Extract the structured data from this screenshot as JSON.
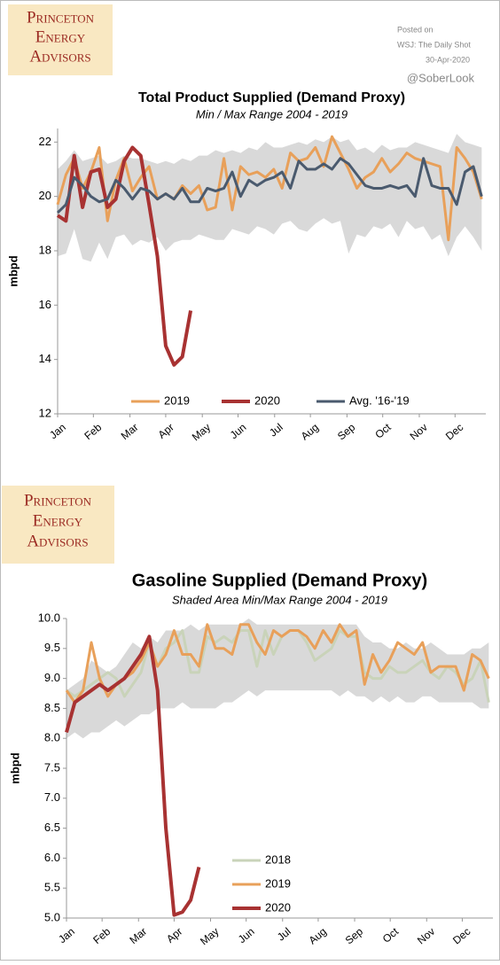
{
  "logos": [
    [
      "Princeton",
      "Energy",
      "Advisors"
    ],
    [
      "Princeton",
      "Energy",
      "Advisors"
    ]
  ],
  "posted": {
    "label": "Posted on",
    "source": "WSJ: The Daily Shot",
    "date": "30-Apr-2020",
    "handle": "@SoberLook"
  },
  "chart_data": [
    {
      "type": "line",
      "title": "Total Product Supplied (Demand Proxy)",
      "subtitle": "Min / Max Range 2004 - 2019",
      "y_label": "mbpd",
      "legend": "bottom",
      "x": [
        0,
        1,
        2,
        3,
        4,
        5,
        6,
        7,
        8,
        9,
        10,
        11,
        12,
        13,
        14,
        15,
        16,
        17,
        18,
        19,
        20,
        21,
        22,
        23,
        24,
        25,
        26,
        27,
        28,
        29,
        30,
        31,
        32,
        33,
        34,
        35,
        36,
        37,
        38,
        39,
        40,
        41,
        42,
        43,
        44,
        45,
        46,
        47,
        48,
        49,
        50,
        51
      ],
      "xlim": [
        0,
        51.5
      ],
      "xticks": [
        {
          "value": 0,
          "label": "Jan"
        },
        {
          "value": 4.3,
          "label": "Feb"
        },
        {
          "value": 8.7,
          "label": "Mar"
        },
        {
          "value": 13,
          "label": "Apr"
        },
        {
          "value": 17.4,
          "label": "May"
        },
        {
          "value": 21.7,
          "label": "Jun"
        },
        {
          "value": 26.1,
          "label": "Jul"
        },
        {
          "value": 30.4,
          "label": "Aug"
        },
        {
          "value": 34.8,
          "label": "Sep"
        },
        {
          "value": 39.1,
          "label": "Oct"
        },
        {
          "value": 43.5,
          "label": "Nov"
        },
        {
          "value": 47.8,
          "label": "Dec"
        }
      ],
      "ylim": [
        12,
        22.5
      ],
      "yticks": [
        12,
        14,
        16,
        18,
        20,
        22
      ],
      "band": {
        "color": "#d9d9d9",
        "max": [
          21.0,
          21.3,
          21.7,
          21.3,
          21.4,
          21.5,
          21.2,
          21.3,
          21.5,
          21.4,
          21.4,
          21.3,
          21.2,
          21.3,
          21.2,
          21.4,
          21.3,
          21.5,
          21.5,
          21.7,
          21.6,
          21.7,
          21.6,
          21.8,
          21.7,
          22.0,
          21.8,
          21.8,
          21.9,
          22.0,
          21.9,
          22.1,
          22.0,
          22.2,
          22.0,
          22.1,
          21.7,
          21.8,
          21.6,
          21.9,
          21.7,
          21.8,
          21.8,
          22.0,
          21.9,
          21.8,
          21.7,
          21.6,
          22.3,
          22.0,
          21.9,
          21.8
        ],
        "min": [
          17.8,
          17.9,
          18.8,
          17.7,
          17.6,
          18.3,
          17.7,
          18.5,
          18.6,
          18.2,
          18.4,
          18.3,
          18.5,
          18.0,
          18.3,
          18.4,
          18.4,
          18.6,
          18.5,
          18.4,
          18.4,
          18.8,
          18.7,
          18.6,
          18.9,
          18.8,
          18.6,
          19.0,
          19.1,
          18.8,
          18.7,
          19.0,
          19.2,
          19.0,
          19.1,
          17.9,
          18.6,
          18.5,
          18.9,
          18.8,
          19.0,
          18.5,
          19.1,
          18.8,
          18.9,
          18.4,
          18.6,
          17.8,
          18.5,
          18.9,
          18.5,
          18.0
        ]
      },
      "series": [
        {
          "name": "2019",
          "color": "#e8a05a",
          "width": 3,
          "values": [
            19.7,
            20.8,
            21.4,
            20.3,
            20.9,
            21.8,
            19.1,
            20.6,
            21.4,
            20.2,
            20.7,
            21.1,
            19.9,
            20.1,
            19.9,
            20.4,
            20.1,
            20.4,
            19.5,
            19.6,
            21.4,
            19.5,
            21.1,
            20.8,
            20.9,
            20.7,
            21.0,
            20.3,
            21.6,
            21.3,
            21.4,
            21.8,
            21.1,
            22.2,
            21.6,
            21.0,
            20.3,
            20.7,
            20.9,
            21.4,
            20.9,
            21.2,
            21.6,
            21.4,
            21.3,
            21.2,
            21.1,
            18.4,
            21.8,
            21.4,
            20.9,
            19.9
          ]
        },
        {
          "name": "2020",
          "color": "#a83232",
          "width": 4,
          "values": [
            19.3,
            19.1,
            21.5,
            19.6,
            20.9,
            21.0,
            19.6,
            19.9,
            21.3,
            21.8,
            21.5,
            19.7,
            17.8,
            14.5,
            13.8,
            14.1,
            15.8,
            null,
            null,
            null,
            null,
            null,
            null,
            null,
            null,
            null,
            null,
            null,
            null,
            null,
            null,
            null,
            null,
            null,
            null,
            null,
            null,
            null,
            null,
            null,
            null,
            null,
            null,
            null,
            null,
            null,
            null,
            null,
            null,
            null,
            null,
            null
          ]
        },
        {
          "name": "Avg. '16-'19",
          "color": "#4a5a6e",
          "width": 3,
          "values": [
            19.4,
            19.7,
            20.7,
            20.4,
            20.0,
            19.8,
            19.9,
            20.6,
            20.3,
            19.9,
            20.3,
            20.2,
            19.9,
            20.1,
            19.9,
            20.3,
            19.8,
            19.8,
            20.3,
            20.2,
            20.3,
            20.9,
            20.0,
            20.6,
            20.4,
            20.6,
            20.7,
            20.9,
            20.3,
            21.3,
            21.0,
            21.0,
            21.2,
            21.0,
            21.4,
            21.2,
            20.8,
            20.4,
            20.3,
            20.3,
            20.4,
            20.3,
            20.4,
            20.0,
            21.4,
            20.4,
            20.3,
            20.3,
            19.7,
            20.9,
            21.1,
            20.0
          ]
        }
      ]
    },
    {
      "type": "line",
      "title": "Gasoline Supplied (Demand Proxy)",
      "subtitle": "Shaded Area Min/Max Range 2004 - 2019",
      "y_label": "mbpd",
      "legend": "lower right",
      "x": [
        0,
        1,
        2,
        3,
        4,
        5,
        6,
        7,
        8,
        9,
        10,
        11,
        12,
        13,
        14,
        15,
        16,
        17,
        18,
        19,
        20,
        21,
        22,
        23,
        24,
        25,
        26,
        27,
        28,
        29,
        30,
        31,
        32,
        33,
        34,
        35,
        36,
        37,
        38,
        39,
        40,
        41,
        42,
        43,
        44,
        45,
        46,
        47,
        48,
        49,
        50,
        51
      ],
      "xlim": [
        0,
        51.5
      ],
      "xticks": [
        {
          "value": 0,
          "label": "Jan"
        },
        {
          "value": 4.3,
          "label": "Feb"
        },
        {
          "value": 8.7,
          "label": "Mar"
        },
        {
          "value": 13,
          "label": "Apr"
        },
        {
          "value": 17.4,
          "label": "May"
        },
        {
          "value": 21.7,
          "label": "Jun"
        },
        {
          "value": 26.1,
          "label": "Jul"
        },
        {
          "value": 30.4,
          "label": "Aug"
        },
        {
          "value": 34.8,
          "label": "Sep"
        },
        {
          "value": 39.1,
          "label": "Oct"
        },
        {
          "value": 43.5,
          "label": "Nov"
        },
        {
          "value": 47.8,
          "label": "Dec"
        }
      ],
      "ylim": [
        5,
        10
      ],
      "yticks": [
        {
          "value": 5,
          "label": "5.0"
        },
        5.5,
        {
          "value": 6,
          "label": "6.0"
        },
        6.5,
        {
          "value": 7,
          "label": "7.0"
        },
        7.5,
        {
          "value": 8,
          "label": "8.0"
        },
        8.5,
        {
          "value": 9,
          "label": "9.0"
        },
        9.5,
        {
          "value": 10,
          "label": "10.0"
        }
      ],
      "band": {
        "color": "#d9d9d9",
        "max": [
          8.8,
          8.9,
          9.0,
          9.3,
          9.2,
          9.1,
          9.2,
          9.4,
          9.6,
          9.5,
          9.7,
          9.6,
          9.8,
          9.8,
          9.8,
          9.9,
          9.8,
          9.9,
          9.9,
          9.9,
          9.9,
          9.9,
          10.0,
          9.9,
          9.9,
          9.9,
          9.9,
          9.9,
          9.9,
          9.9,
          9.9,
          9.9,
          9.9,
          9.9,
          9.9,
          9.9,
          9.7,
          9.6,
          9.6,
          9.5,
          9.5,
          9.6,
          9.5,
          9.5,
          9.6,
          9.5,
          9.4,
          9.4,
          9.4,
          9.5,
          9.5,
          9.6
        ],
        "min": [
          8.0,
          8.1,
          8.0,
          8.1,
          8.1,
          8.2,
          8.3,
          8.2,
          8.3,
          8.4,
          8.4,
          8.5,
          8.5,
          8.5,
          8.6,
          8.5,
          8.5,
          8.5,
          8.5,
          8.6,
          8.6,
          8.7,
          8.8,
          8.7,
          8.8,
          8.8,
          8.8,
          8.8,
          8.8,
          8.8,
          8.8,
          8.8,
          8.8,
          8.7,
          8.8,
          8.7,
          8.7,
          8.6,
          8.7,
          8.6,
          8.7,
          8.6,
          8.6,
          8.7,
          8.7,
          8.6,
          8.6,
          8.6,
          8.6,
          8.6,
          8.5,
          8.5
        ]
      },
      "series": [
        {
          "name": "2018",
          "color": "#c9d3b9",
          "width": 3,
          "values": [
            8.8,
            8.7,
            8.8,
            8.9,
            9.0,
            9.1,
            9.0,
            8.7,
            8.9,
            9.1,
            9.6,
            9.2,
            9.5,
            9.6,
            9.8,
            9.1,
            9.1,
            9.7,
            9.6,
            9.7,
            9.6,
            9.8,
            9.8,
            9.2,
            9.8,
            9.4,
            9.7,
            9.8,
            9.8,
            9.6,
            9.3,
            9.4,
            9.5,
            9.8,
            9.7,
            9.7,
            9.1,
            9.0,
            9.0,
            9.2,
            9.1,
            9.1,
            9.2,
            9.3,
            9.1,
            9.0,
            9.2,
            9.1,
            8.9,
            9.0,
            9.3,
            8.6
          ]
        },
        {
          "name": "2019",
          "color": "#e8a05a",
          "width": 3,
          "values": [
            8.8,
            8.6,
            8.8,
            9.6,
            9.0,
            8.7,
            8.9,
            9.0,
            9.1,
            9.3,
            9.6,
            9.2,
            9.4,
            9.8,
            9.4,
            9.4,
            9.2,
            9.9,
            9.5,
            9.5,
            9.4,
            9.9,
            9.9,
            9.6,
            9.4,
            9.8,
            9.7,
            9.8,
            9.8,
            9.7,
            9.5,
            9.8,
            9.6,
            9.9,
            9.7,
            9.8,
            8.9,
            9.4,
            9.1,
            9.3,
            9.6,
            9.5,
            9.4,
            9.6,
            9.1,
            9.2,
            9.2,
            9.2,
            8.8,
            9.4,
            9.3,
            9.0
          ]
        },
        {
          "name": "2020",
          "color": "#a83232",
          "width": 4,
          "values": [
            8.1,
            8.6,
            8.7,
            8.8,
            8.9,
            8.8,
            8.9,
            9.0,
            9.2,
            9.4,
            9.7,
            8.8,
            6.5,
            5.05,
            5.1,
            5.3,
            5.85,
            null,
            null,
            null,
            null,
            null,
            null,
            null,
            null,
            null,
            null,
            null,
            null,
            null,
            null,
            null,
            null,
            null,
            null,
            null,
            null,
            null,
            null,
            null,
            null,
            null,
            null,
            null,
            null,
            null,
            null,
            null,
            null,
            null,
            null,
            null
          ]
        }
      ]
    }
  ]
}
